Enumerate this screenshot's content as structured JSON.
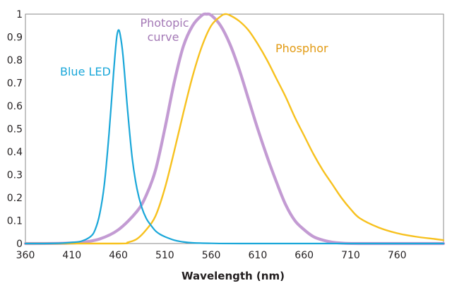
{
  "chart_data": {
    "type": "line",
    "title": "",
    "xlabel": "Wavelength (nm)",
    "ylabel": "",
    "xlim": [
      360,
      810
    ],
    "ylim": [
      0,
      1
    ],
    "grid": false,
    "x_ticks": [
      360,
      410,
      460,
      510,
      560,
      610,
      660,
      710,
      760
    ],
    "y_ticks": [
      0,
      0.1,
      0.2,
      0.3,
      0.4,
      0.5,
      0.6,
      0.7,
      0.8,
      0.9,
      1
    ],
    "y_tick_labels": [
      "0",
      "0.1",
      "0.2",
      "0.3",
      "0.4",
      "0.5",
      "0.6",
      "0.7",
      "0.8",
      "0.9",
      "1"
    ],
    "series": [
      {
        "name": "Blue LED",
        "color": "#1aa7d9",
        "x": [
          360,
          380,
          400,
          410,
          420,
          430,
          435,
          440,
          445,
          450,
          455,
          458,
          460,
          462,
          465,
          470,
          475,
          480,
          485,
          490,
          495,
          500,
          505,
          510,
          520,
          530,
          540,
          560,
          600,
          810
        ],
        "y": [
          0,
          0,
          0.002,
          0.005,
          0.01,
          0.03,
          0.06,
          0.13,
          0.26,
          0.48,
          0.75,
          0.89,
          0.93,
          0.91,
          0.82,
          0.58,
          0.37,
          0.24,
          0.16,
          0.11,
          0.08,
          0.055,
          0.04,
          0.03,
          0.015,
          0.007,
          0.003,
          0.001,
          0,
          0
        ]
      },
      {
        "name": "Photopic curve",
        "color": "#c39bd3",
        "x": [
          360,
          400,
          420,
          440,
          460,
          480,
          490,
          500,
          510,
          520,
          530,
          540,
          550,
          555,
          560,
          570,
          580,
          590,
          600,
          610,
          620,
          630,
          640,
          650,
          660,
          670,
          680,
          690,
          700,
          720,
          810
        ],
        "y": [
          0,
          0.001,
          0.005,
          0.02,
          0.06,
          0.14,
          0.21,
          0.32,
          0.5,
          0.7,
          0.86,
          0.95,
          0.995,
          1.0,
          0.995,
          0.95,
          0.87,
          0.76,
          0.63,
          0.5,
          0.38,
          0.27,
          0.17,
          0.1,
          0.06,
          0.03,
          0.015,
          0.006,
          0.002,
          0,
          0
        ]
      },
      {
        "name": "Phosphor",
        "color": "#f7c11e",
        "x": [
          360,
          460,
          470,
          480,
          490,
          500,
          510,
          520,
          530,
          540,
          550,
          560,
          570,
          575,
          580,
          590,
          600,
          610,
          620,
          630,
          640,
          650,
          660,
          670,
          680,
          690,
          700,
          710,
          720,
          740,
          760,
          780,
          800,
          810
        ],
        "y": [
          0,
          0,
          0.005,
          0.02,
          0.06,
          0.12,
          0.24,
          0.4,
          0.57,
          0.73,
          0.86,
          0.95,
          0.99,
          1.0,
          0.995,
          0.97,
          0.93,
          0.87,
          0.8,
          0.72,
          0.64,
          0.55,
          0.47,
          0.39,
          0.32,
          0.26,
          0.2,
          0.15,
          0.11,
          0.07,
          0.045,
          0.03,
          0.02,
          0.015
        ]
      }
    ],
    "annotations": [
      {
        "text": "Blue LED",
        "series": 0
      },
      {
        "text": "Photopic",
        "series": 1
      },
      {
        "text": "curve",
        "series": 1
      },
      {
        "text": "Phosphor",
        "series": 2
      }
    ]
  }
}
